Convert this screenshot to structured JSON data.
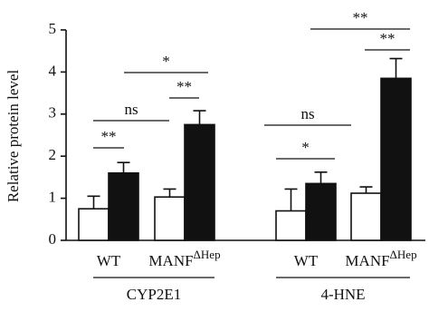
{
  "chart_data": {
    "type": "bar",
    "y_label": "Relative protein level",
    "ylim": [
      0,
      5
    ],
    "yticks": [
      0,
      1,
      2,
      3,
      4,
      5
    ],
    "groups": [
      "CYP2E1",
      "4-HNE"
    ],
    "categories": [
      "WT",
      "MANF",
      "WT",
      "MANF"
    ],
    "category_superscripts": [
      null,
      "ΔHep",
      null,
      "ΔHep"
    ],
    "series": [
      {
        "color": "#ffffff",
        "values": [
          0.75,
          1.03,
          0.7,
          1.12
        ],
        "errors": [
          0.3,
          0.19,
          0.52,
          0.15
        ]
      },
      {
        "color": "#111111",
        "values": [
          1.6,
          2.75,
          1.35,
          3.85
        ],
        "errors": [
          0.25,
          0.33,
          0.27,
          0.47
        ]
      }
    ],
    "annotations": [
      "**",
      "ns",
      "**",
      "*",
      "*",
      "ns",
      "**",
      "**"
    ]
  }
}
